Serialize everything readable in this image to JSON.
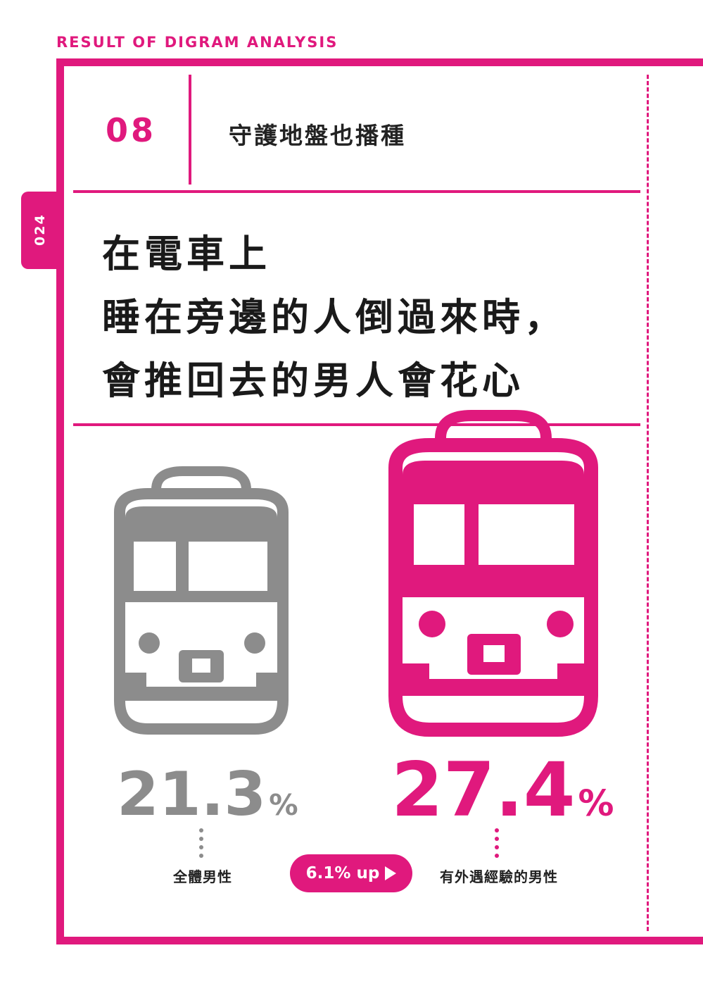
{
  "header": {
    "label": "RESULT OF DIGRAM ANALYSIS"
  },
  "page": {
    "number": "024"
  },
  "section": {
    "number": "08",
    "title": "守護地盤也播種"
  },
  "headline": {
    "lines": [
      "在電車上",
      "睡在旁邊的人倒過來時，",
      "會推回去的男人會花心"
    ]
  },
  "stats": {
    "left": {
      "value": "21.3",
      "unit": "%",
      "caption": "全體男性",
      "color": "#8c8c8c"
    },
    "right": {
      "value": "27.4",
      "unit": "%",
      "caption": "有外遇經驗的男性",
      "color": "#e0197d"
    }
  },
  "badge": {
    "text": "6.1% up"
  },
  "colors": {
    "accent": "#e0197d",
    "gray": "#8c8c8c"
  }
}
